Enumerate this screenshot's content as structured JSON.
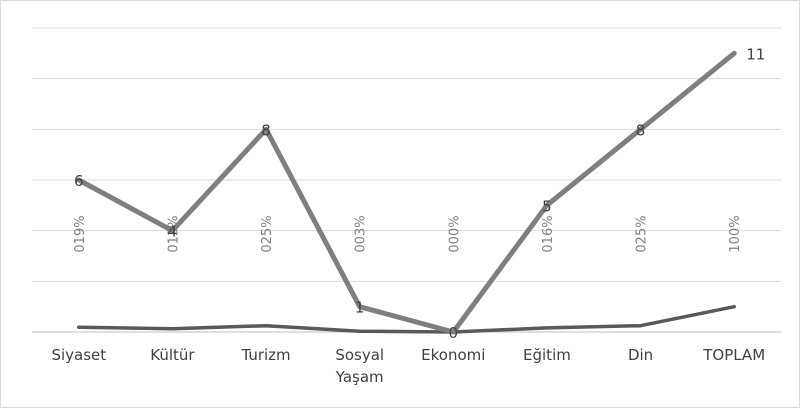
{
  "chart_data": {
    "type": "line",
    "categories": [
      [
        "Siyaset"
      ],
      [
        "Kültür"
      ],
      [
        "Turizm"
      ],
      [
        "Sosyal",
        "Yaşam"
      ],
      [
        "Ekonomi"
      ],
      [
        "Eğitim"
      ],
      [
        "Din"
      ],
      [
        "TOPLAM"
      ]
    ],
    "series": [
      {
        "values": [
          6,
          4,
          8,
          1,
          0,
          5,
          8,
          11
        ],
        "data_labels": [
          "6",
          "4",
          "8",
          "1",
          "0",
          "5",
          "8",
          "11"
        ],
        "color": "#7f7f7f"
      },
      {
        "values": [
          0.19,
          0.13,
          0.25,
          0.03,
          0.0,
          0.16,
          0.25,
          1.0
        ],
        "data_labels": [
          "019%",
          "013%",
          "025%",
          "003%",
          "000%",
          "016%",
          "025%",
          "100%"
        ],
        "color": "#595959"
      }
    ],
    "ylim": [
      0,
      12
    ],
    "grid": true,
    "legend": "none"
  }
}
